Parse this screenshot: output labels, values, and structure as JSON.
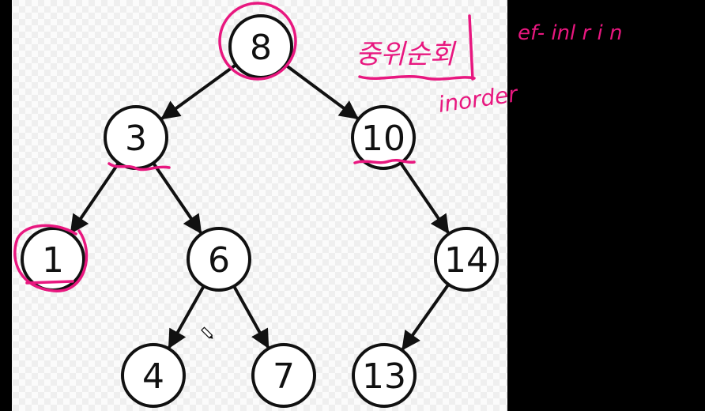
{
  "tree": {
    "nodes": [
      {
        "id": "8",
        "label": "8"
      },
      {
        "id": "3",
        "label": "3"
      },
      {
        "id": "10",
        "label": "10"
      },
      {
        "id": "1",
        "label": "1"
      },
      {
        "id": "6",
        "label": "6"
      },
      {
        "id": "14",
        "label": "14"
      },
      {
        "id": "4",
        "label": "4"
      },
      {
        "id": "7",
        "label": "7"
      },
      {
        "id": "13",
        "label": "13"
      }
    ],
    "edges": [
      [
        "8",
        "3"
      ],
      [
        "8",
        "10"
      ],
      [
        "3",
        "1"
      ],
      [
        "3",
        "6"
      ],
      [
        "10",
        "14"
      ],
      [
        "6",
        "4"
      ],
      [
        "6",
        "7"
      ],
      [
        "14",
        "13"
      ]
    ]
  },
  "annotations": {
    "korean_note": "중위순회",
    "english_note": "inorder",
    "scribble_note": "ef- inl r i n"
  },
  "colors": {
    "ink": "#e8177f",
    "node_stroke": "#111111",
    "board_bg": "#f7f7f7",
    "outside_bg": "#000000"
  }
}
